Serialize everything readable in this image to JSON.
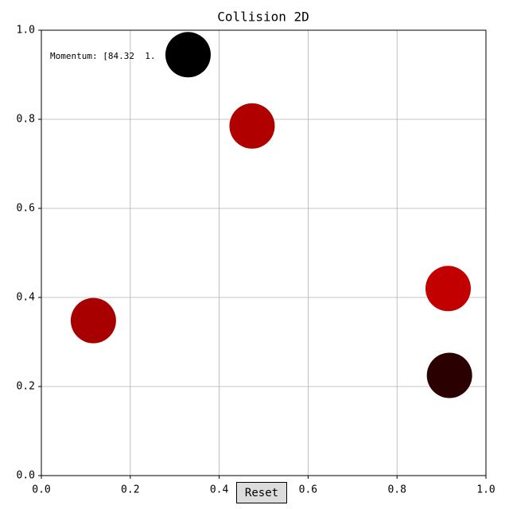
{
  "chart_data": {
    "type": "scatter",
    "title": "Collision 2D",
    "annotation": "Momentum: [84.32  1.",
    "x": [
      0.33,
      0.474,
      0.915,
      0.117,
      0.918
    ],
    "y": [
      0.945,
      0.785,
      0.42,
      0.348,
      0.225
    ],
    "colors": [
      "#000000",
      "#b00000",
      "#c20000",
      "#a80000",
      "#2a0000"
    ],
    "xlim": [
      0,
      1
    ],
    "ylim": [
      0,
      1
    ],
    "xticks": [
      {
        "value": 0,
        "label": "0.0"
      },
      0.2,
      0.4,
      0.6,
      0.8,
      {
        "value": 1,
        "label": "1.0"
      }
    ],
    "yticks": [
      {
        "value": 0,
        "label": "0.0"
      },
      0.2,
      0.4,
      0.6,
      0.8,
      {
        "value": 1,
        "label": "1.0"
      }
    ],
    "grid": true
  },
  "button": "Reset"
}
